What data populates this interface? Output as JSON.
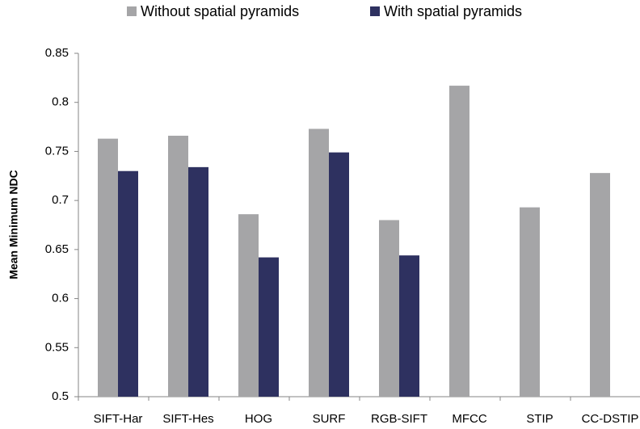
{
  "chart_data": {
    "type": "bar",
    "y_label": "Mean Minimum NDC",
    "categories": [
      "SIFT-Har",
      "SIFT-Hes",
      "HOG",
      "SURF",
      "RGB-SIFT",
      "MFCC",
      "STIP",
      "CC-DSTIP"
    ],
    "series": [
      {
        "name": "Without spatial pyramids",
        "color": "#a5a5a7",
        "values": [
          0.763,
          0.766,
          0.686,
          0.773,
          0.68,
          0.817,
          0.693,
          0.728
        ]
      },
      {
        "name": "With spatial pyramids",
        "color": "#2e3160",
        "values": [
          0.73,
          0.734,
          0.642,
          0.749,
          0.644,
          null,
          null,
          null
        ]
      }
    ],
    "ylim": [
      0.5,
      0.85
    ],
    "yticks": [
      0.5,
      0.55,
      0.6,
      0.65,
      0.7,
      0.75,
      0.8,
      0.85
    ],
    "grid": false,
    "legend": "top"
  }
}
